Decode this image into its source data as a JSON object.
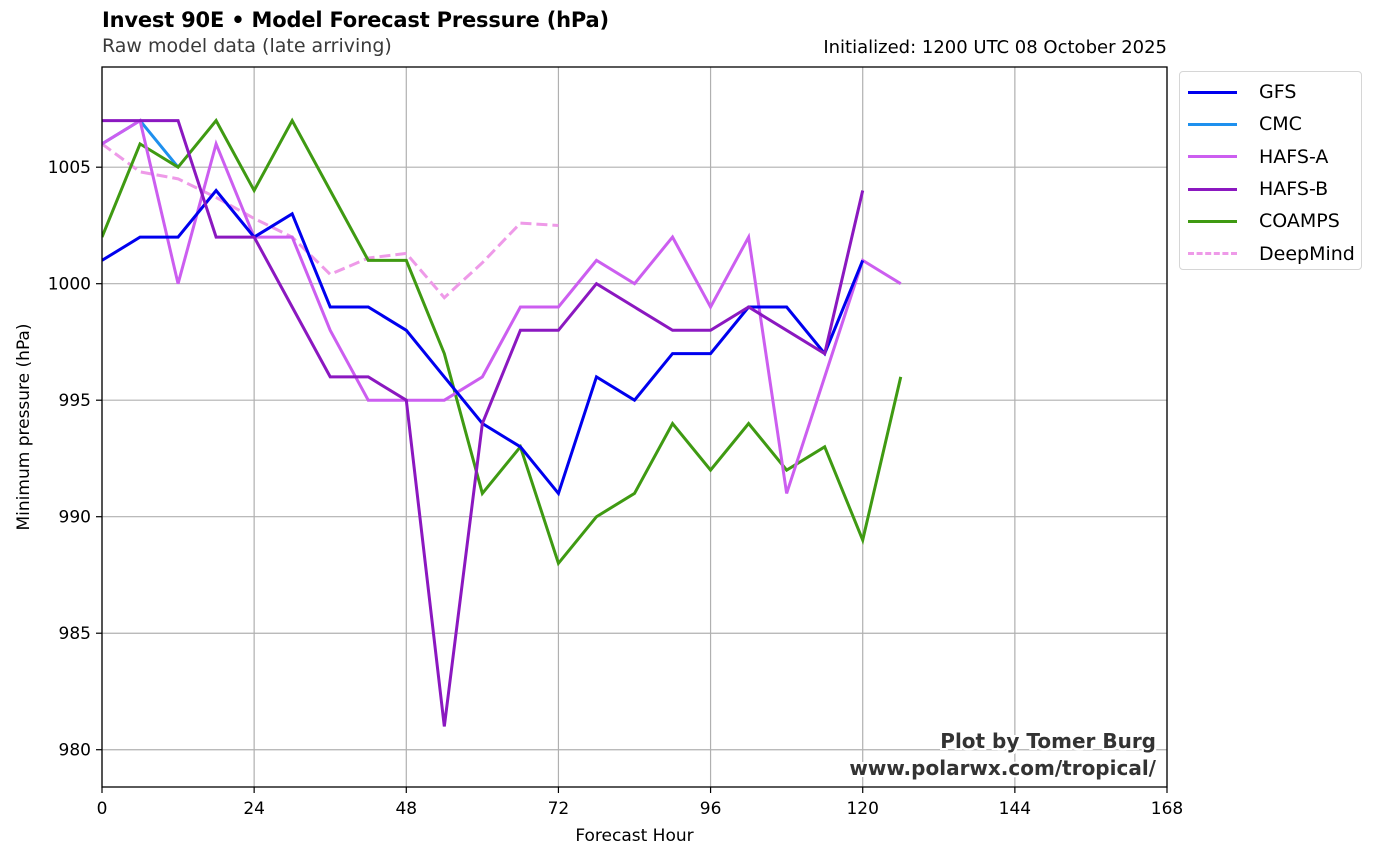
{
  "header": {
    "title": "Invest 90E • Model Forecast Pressure (hPa)",
    "subtitle": "Raw model data (late arriving)",
    "initialized": "Initialized: 1200 UTC 08 October 2025"
  },
  "credit": {
    "line1": "Plot by Tomer Burg",
    "line2": "www.polarwx.com/tropical/"
  },
  "chart_data": {
    "type": "line",
    "title": "Invest 90E • Model Forecast Pressure (hPa)",
    "subtitle": "Raw model data (late arriving)",
    "xlabel": "Forecast Hour",
    "ylabel": "Minimum pressure (hPa)",
    "xlim": [
      0,
      168
    ],
    "ylim": [
      978.4,
      1009.3
    ],
    "xticks": [
      0,
      24,
      48,
      72,
      96,
      120,
      144,
      168
    ],
    "yticks": [
      980,
      985,
      990,
      995,
      1000,
      1005
    ],
    "xtick_labels": [
      "0",
      "24",
      "48",
      "72",
      "96",
      "120",
      "144",
      "168"
    ],
    "ytick_labels": [
      "980",
      "985",
      "990",
      "995",
      "1000",
      "1005"
    ],
    "grid": true,
    "legend_position": "outside-top-right",
    "series": [
      {
        "name": "GFS",
        "color": "#0000ee",
        "dash": "solid",
        "x": [
          0,
          6,
          12,
          18,
          24,
          30,
          36,
          42,
          48,
          54,
          60,
          66,
          72,
          78,
          84,
          90,
          96,
          102,
          108,
          114,
          120
        ],
        "y": [
          1001,
          1002,
          1002,
          1004,
          1002,
          1003,
          999,
          999,
          998,
          996,
          994,
          993,
          991,
          996,
          995,
          997,
          997,
          999,
          999,
          997,
          1001
        ]
      },
      {
        "name": "CMC",
        "color": "#1e90ee",
        "dash": "solid",
        "x": [
          0,
          6,
          12
        ],
        "y": [
          1006,
          1007,
          1005
        ]
      },
      {
        "name": "HAFS-A",
        "color": "#cc5ef0",
        "dash": "solid",
        "x": [
          0,
          6,
          12,
          18,
          24,
          30,
          36,
          42,
          48,
          54,
          60,
          66,
          72,
          78,
          84,
          90,
          96,
          102,
          108,
          114,
          120,
          126
        ],
        "y": [
          1006,
          1007,
          1000,
          1006,
          1002,
          1002,
          998,
          995,
          995,
          995,
          996,
          999,
          999,
          1001,
          1000,
          1002,
          999,
          1002,
          991,
          996,
          1001,
          1000
        ]
      },
      {
        "name": "HAFS-B",
        "color": "#8b18c0",
        "dash": "solid",
        "x": [
          0,
          6,
          12,
          18,
          24,
          30,
          36,
          42,
          48,
          54,
          60,
          66,
          72,
          78,
          84,
          90,
          96,
          102,
          108,
          114,
          120
        ],
        "y": [
          1007,
          1007,
          1007,
          1002,
          1002,
          999,
          996,
          996,
          995,
          981,
          994,
          998,
          998,
          1000,
          999,
          998,
          998,
          999,
          998,
          997,
          1004
        ]
      },
      {
        "name": "COAMPS",
        "color": "#3f9a12",
        "dash": "solid",
        "x": [
          0,
          6,
          12,
          18,
          24,
          30,
          36,
          42,
          48,
          54,
          60,
          66,
          72,
          78,
          84,
          90,
          96,
          102,
          108,
          114,
          120,
          126
        ],
        "y": [
          1002,
          1006,
          1005,
          1007,
          1004,
          1007,
          1004,
          1001,
          1001,
          997,
          991,
          993,
          988,
          990,
          991,
          994,
          992,
          994,
          992,
          993,
          989,
          996
        ]
      },
      {
        "name": "DeepMind",
        "color": "#ee9ae8",
        "dash": "dashed",
        "x": [
          0,
          6,
          12,
          18,
          24,
          30,
          36,
          42,
          48,
          54,
          60,
          66,
          72
        ],
        "y": [
          1006.0,
          1004.8,
          1004.5,
          1003.7,
          1002.8,
          1002.0,
          1000.4,
          1001.1,
          1001.3,
          999.4,
          1000.9,
          1002.6,
          1002.5
        ]
      }
    ]
  }
}
